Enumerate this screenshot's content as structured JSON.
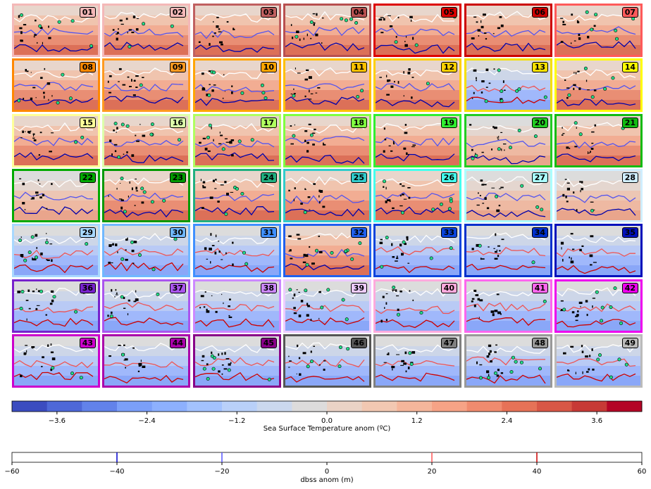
{
  "panels": [
    {
      "id": "01",
      "color": "#f4b8b8",
      "bg": "warm"
    },
    {
      "id": "02",
      "color": "#f4b8b8",
      "bg": "warm"
    },
    {
      "id": "03",
      "color": "#c06060",
      "bg": "warm"
    },
    {
      "id": "04",
      "color": "#b85050",
      "bg": "warm"
    },
    {
      "id": "05",
      "color": "#dd0000",
      "bg": "warm"
    },
    {
      "id": "06",
      "color": "#cc0000",
      "bg": "warm"
    },
    {
      "id": "07",
      "color": "#ff5a5a",
      "bg": "warm"
    },
    {
      "id": "08",
      "color": "#ff8800",
      "bg": "warm"
    },
    {
      "id": "09",
      "color": "#ff9a20",
      "bg": "warm"
    },
    {
      "id": "10",
      "color": "#ffa500",
      "bg": "warm"
    },
    {
      "id": "11",
      "color": "#ffc000",
      "bg": "warm"
    },
    {
      "id": "12",
      "color": "#ffd000",
      "bg": "warm"
    },
    {
      "id": "13",
      "color": "#f5e000",
      "bg": "cool"
    },
    {
      "id": "14",
      "color": "#ffff00",
      "bg": "warm"
    },
    {
      "id": "15",
      "color": "#ffff99",
      "bg": "warm"
    },
    {
      "id": "16",
      "color": "#ddffaa",
      "bg": "warm"
    },
    {
      "id": "17",
      "color": "#b0ff60",
      "bg": "warm"
    },
    {
      "id": "18",
      "color": "#80ff40",
      "bg": "warm"
    },
    {
      "id": "19",
      "color": "#30ee30",
      "bg": "warm"
    },
    {
      "id": "20",
      "color": "#22cc22",
      "bg": "neutral"
    },
    {
      "id": "21",
      "color": "#11bb11",
      "bg": "warm"
    },
    {
      "id": "22",
      "color": "#00aa00",
      "bg": "neutral"
    },
    {
      "id": "23",
      "color": "#009900",
      "bg": "warm"
    },
    {
      "id": "24",
      "color": "#20b080",
      "bg": "warm"
    },
    {
      "id": "25",
      "color": "#30cccc",
      "bg": "warm"
    },
    {
      "id": "26",
      "color": "#44ffee",
      "bg": "warm"
    },
    {
      "id": "27",
      "color": "#aaffff",
      "bg": "neutral"
    },
    {
      "id": "28",
      "color": "#d0eeff",
      "bg": "neutral"
    },
    {
      "id": "29",
      "color": "#a8d8ff",
      "bg": "cool"
    },
    {
      "id": "30",
      "color": "#70b8ff",
      "bg": "cool"
    },
    {
      "id": "31",
      "color": "#4090ff",
      "bg": "cool"
    },
    {
      "id": "32",
      "color": "#2060ee",
      "bg": "warm"
    },
    {
      "id": "33",
      "color": "#0a44dd",
      "bg": "cool"
    },
    {
      "id": "34",
      "color": "#0030cc",
      "bg": "cool"
    },
    {
      "id": "35",
      "color": "#0010bb",
      "bg": "cool"
    },
    {
      "id": "36",
      "color": "#7722cc",
      "bg": "cool"
    },
    {
      "id": "37",
      "color": "#aa55ee",
      "bg": "cool"
    },
    {
      "id": "38",
      "color": "#cc88ff",
      "bg": "cool"
    },
    {
      "id": "39",
      "color": "#eeccff",
      "bg": "cool"
    },
    {
      "id": "40",
      "color": "#ffaadd",
      "bg": "cool"
    },
    {
      "id": "41",
      "color": "#ff66ee",
      "bg": "cool"
    },
    {
      "id": "42",
      "color": "#ee00ee",
      "bg": "cool"
    },
    {
      "id": "43",
      "color": "#cc00cc",
      "bg": "cool"
    },
    {
      "id": "44",
      "color": "#aa00aa",
      "bg": "cool"
    },
    {
      "id": "45",
      "color": "#880088",
      "bg": "cool"
    },
    {
      "id": "46",
      "color": "#555555",
      "bg": "cool"
    },
    {
      "id": "47",
      "color": "#808080",
      "bg": "cool"
    },
    {
      "id": "48",
      "color": "#999999",
      "bg": "cool"
    },
    {
      "id": "49",
      "color": "#bbbbbb",
      "bg": "cool"
    }
  ],
  "chart_data": [
    {
      "type": "colorbar",
      "xlabel": "Sea Surface Temperature anom (ºC)",
      "ticks": [
        "−3.6",
        "−2.4",
        "−1.2",
        "0.0",
        "1.2",
        "2.4",
        "3.6"
      ],
      "tick_values": [
        -3.6,
        -2.4,
        -1.2,
        0.0,
        1.2,
        2.4,
        3.6
      ],
      "xlim": [
        -4.2,
        4.2
      ],
      "colors": [
        "#3b4cc0",
        "#4e68d8",
        "#6282ea",
        "#7b9ff9",
        "#8db0fe",
        "#a3c2fe",
        "#b9d0f9",
        "#cbd8ee",
        "#dddcdc",
        "#ead3c6",
        "#f2c8b2",
        "#f5b69b",
        "#f6a386",
        "#f08b6e",
        "#e67257",
        "#d85746",
        "#c73a36",
        "#b40426"
      ]
    },
    {
      "type": "colorbar",
      "xlabel": "dbss anom (m)",
      "ticks": [
        "−60",
        "−40",
        "−20",
        "0",
        "20",
        "40",
        "60"
      ],
      "tick_values": [
        -60,
        -40,
        -20,
        0,
        20,
        40,
        60
      ],
      "xlim": [
        -60,
        60
      ],
      "lines": [
        {
          "value": -40,
          "color": "#0000cc"
        },
        {
          "value": -20,
          "color": "#5555ff"
        },
        {
          "value": 20,
          "color": "#ff5555"
        },
        {
          "value": 40,
          "color": "#cc0000"
        }
      ]
    }
  ]
}
